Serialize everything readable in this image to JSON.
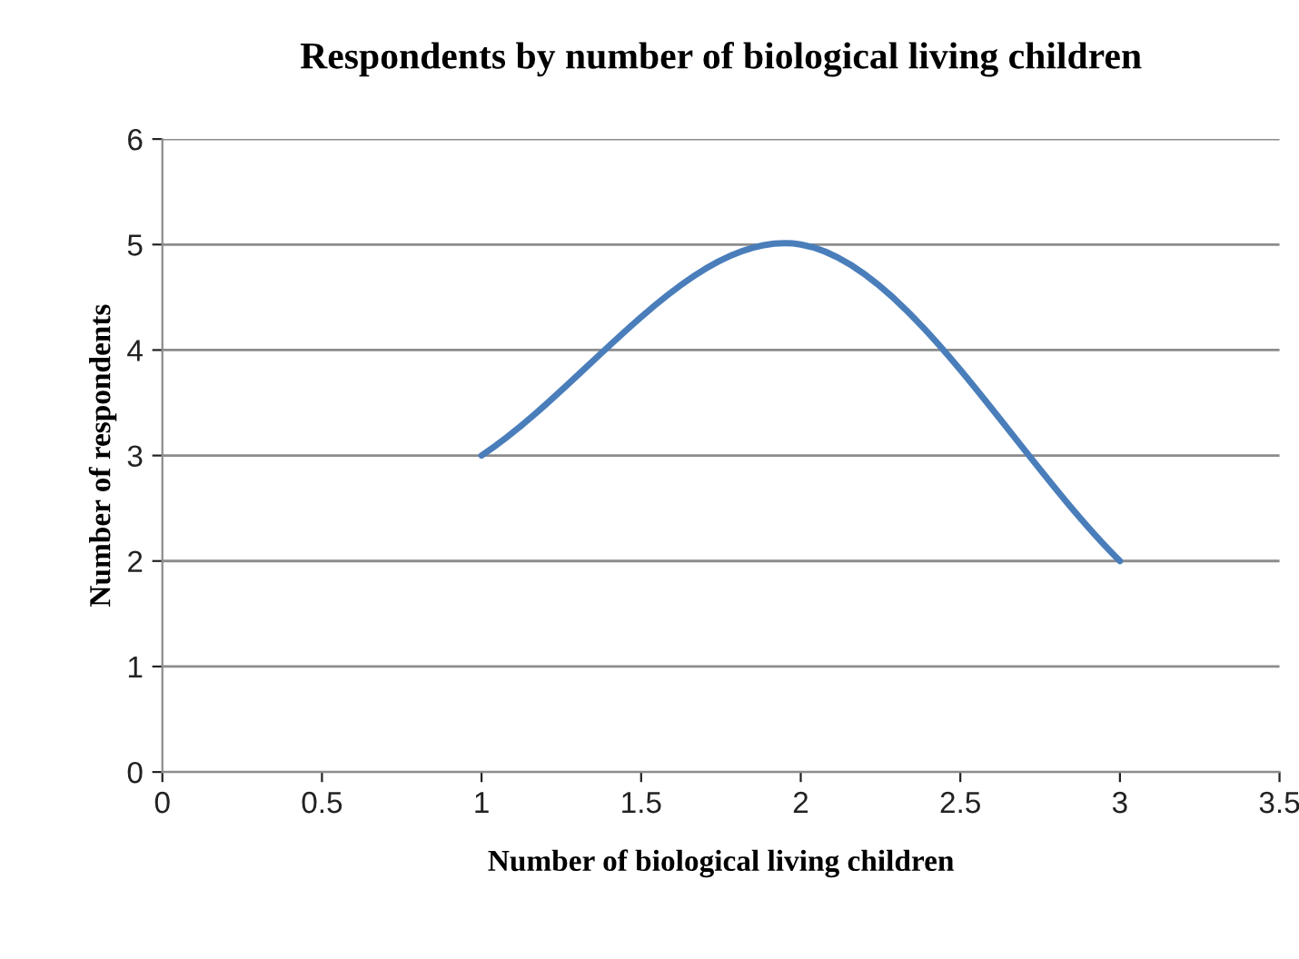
{
  "chart_data": {
    "type": "line",
    "title": "Respondents by number of biological living children",
    "xlabel": "Number of biological living children",
    "ylabel": "Number of respondents",
    "x": [
      1,
      2,
      3
    ],
    "series": [
      {
        "color": "#4a7ebb",
        "values": [
          3,
          5,
          2
        ]
      }
    ],
    "xlim": [
      0,
      3.5
    ],
    "xticks": [
      0,
      0.5,
      1,
      1.5,
      2,
      2.5,
      3,
      3.5
    ],
    "ylim": [
      0,
      6
    ],
    "yticks": [
      0,
      1,
      2,
      3,
      4,
      5,
      6
    ],
    "grid": "y",
    "marker": "none",
    "line_style": "solid",
    "legend": false
  }
}
